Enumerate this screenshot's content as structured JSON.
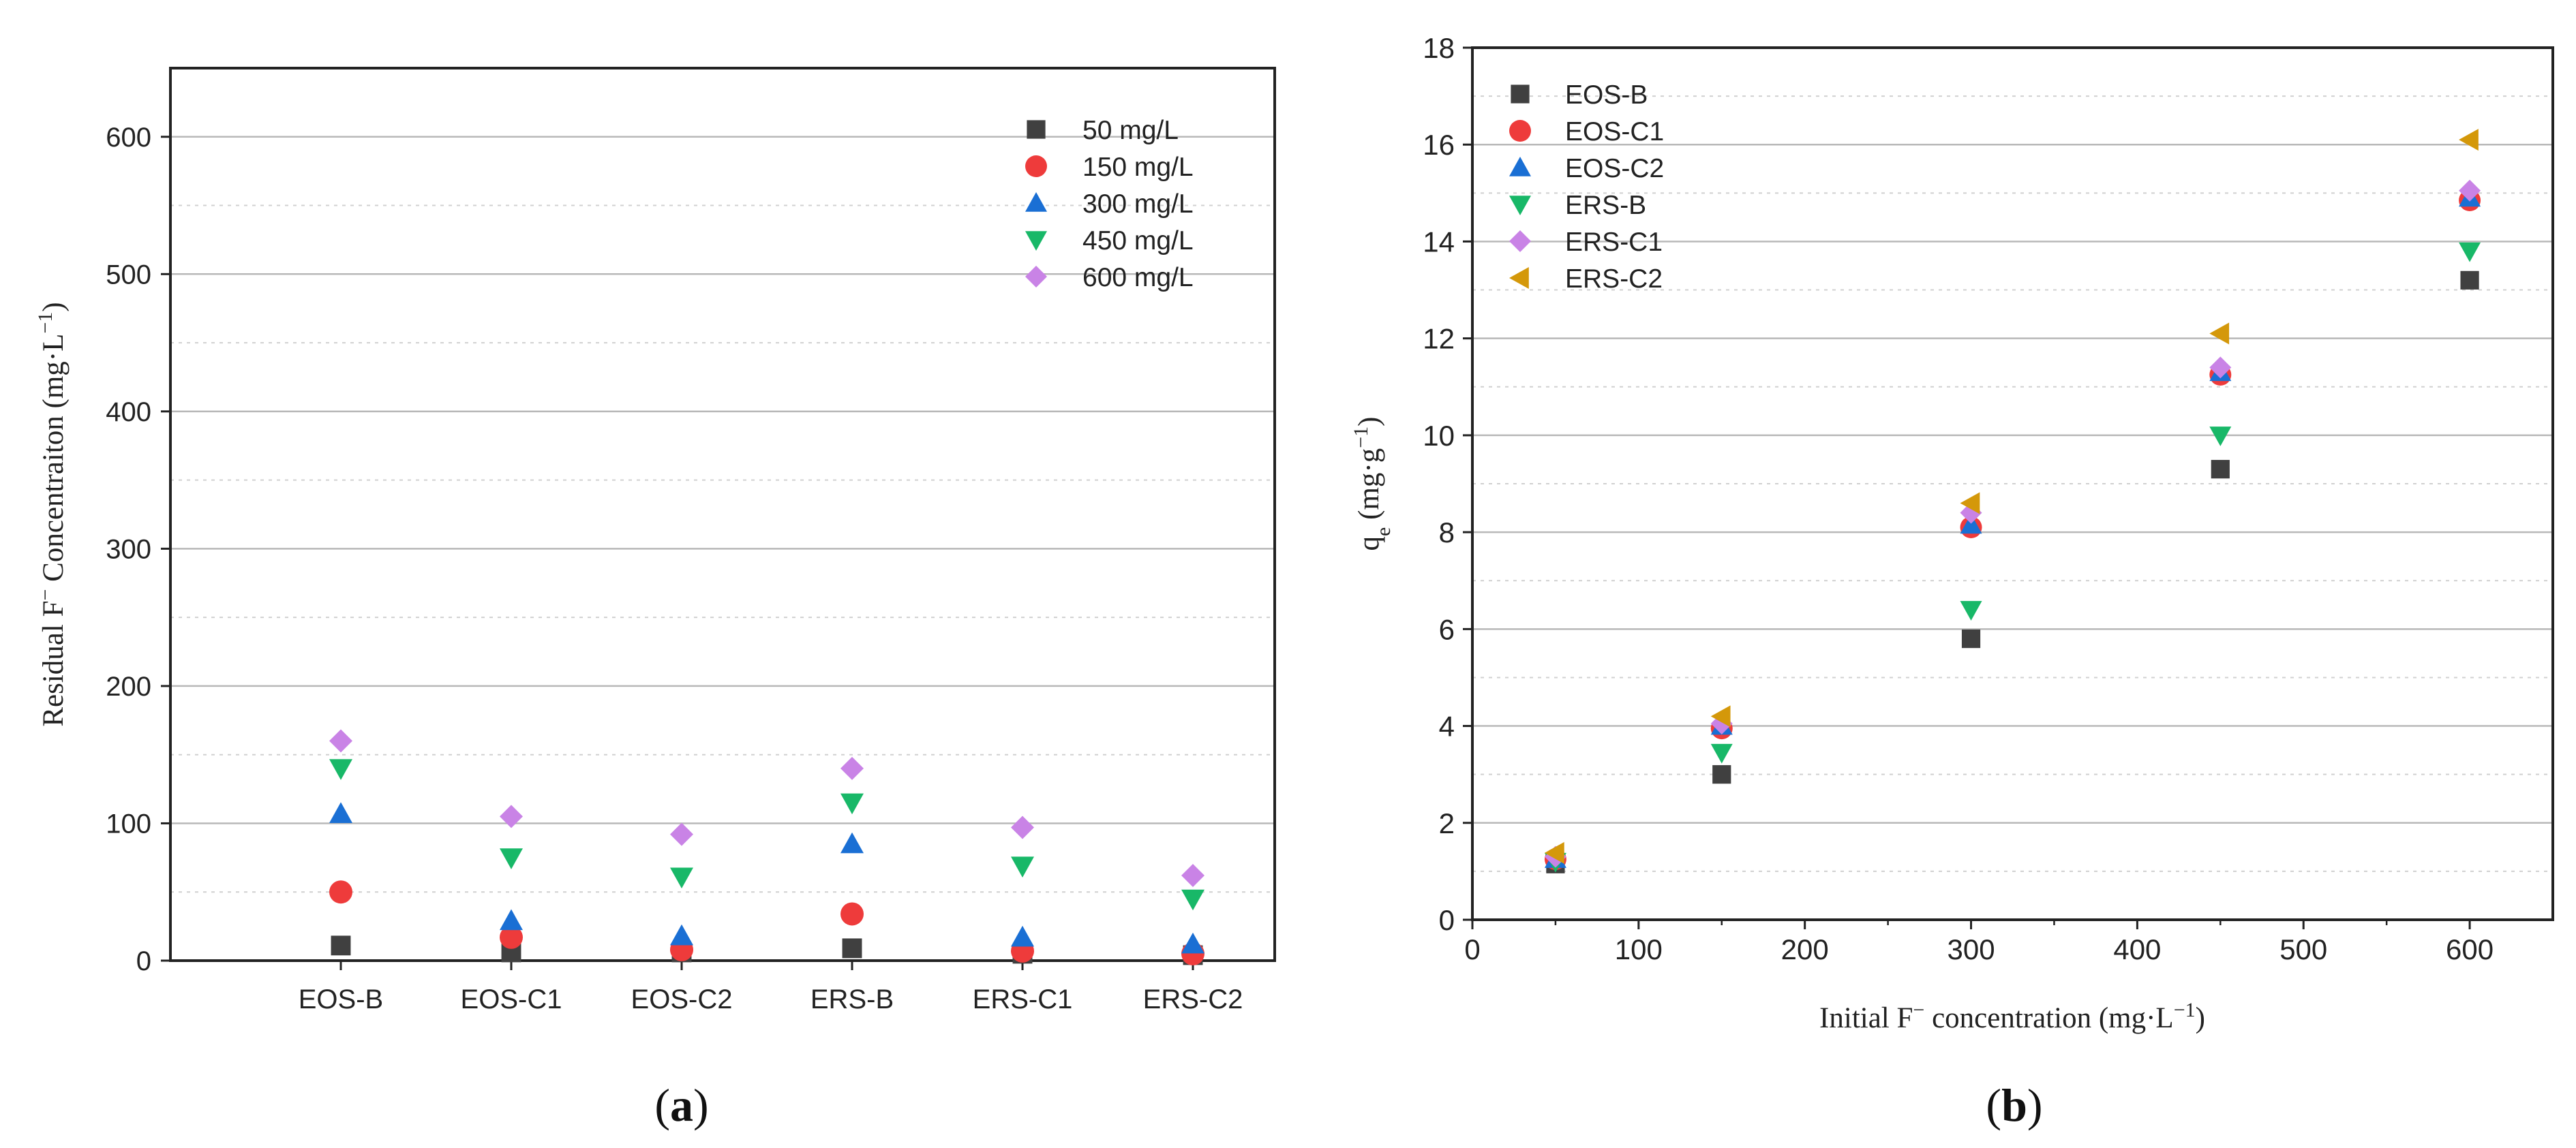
{
  "chart_data": [
    {
      "type": "scatter",
      "panel_label": "(a)",
      "panel_label_letter": "a",
      "ylabel": "Residual F− Concentraiton (mg·L−1)",
      "ylabel_parts": {
        "main": "Residual F",
        "sup1": "−",
        "mid": " Concentraiton (mg·L",
        "sup2": "−1",
        "end": ")"
      },
      "xlabel": "",
      "categories": [
        "EOS-B",
        "EOS-C1",
        "EOS-C2",
        "ERS-B",
        "ERS-C1",
        "ERS-C2"
      ],
      "ylim": [
        0,
        650
      ],
      "yticks": [
        0,
        100,
        200,
        300,
        400,
        500,
        600
      ],
      "legend_position": "top-right",
      "series": [
        {
          "name": "50 mg/L",
          "marker": "square",
          "color": "#404040",
          "values": [
            11,
            6,
            6,
            9,
            5,
            4
          ]
        },
        {
          "name": "150 mg/L",
          "marker": "circle",
          "color": "#ee3b3b",
          "values": [
            50,
            17,
            8,
            34,
            7,
            5
          ]
        },
        {
          "name": "300 mg/L",
          "marker": "triangle-up",
          "color": "#1a6fd4",
          "values": [
            107,
            29,
            18,
            85,
            17,
            12
          ]
        },
        {
          "name": "450 mg/L",
          "marker": "triangle-down",
          "color": "#18b868",
          "values": [
            140,
            75,
            61,
            115,
            69,
            45
          ]
        },
        {
          "name": "600 mg/L",
          "marker": "diamond",
          "color": "#c983e6",
          "values": [
            160,
            105,
            92,
            140,
            97,
            62
          ]
        }
      ]
    },
    {
      "type": "scatter",
      "panel_label": "(b)",
      "panel_label_letter": "b",
      "xlabel": "Initial F− concentration (mg·L−1)",
      "xlabel_parts": {
        "main": "Initial F",
        "sup1": "−",
        "mid": " concentration (mg·L",
        "sup2": "−1",
        "end": ")"
      },
      "ylabel": "qe (mg·g−1)",
      "ylabel_parts": {
        "main": "q",
        "sub": "e",
        "mid": " (mg·g",
        "sup": "−1",
        "end": ")"
      },
      "xlim": [
        0,
        650
      ],
      "ylim": [
        0,
        18
      ],
      "xticks": [
        0,
        100,
        200,
        300,
        400,
        500,
        600
      ],
      "yticks": [
        0,
        2,
        4,
        6,
        8,
        10,
        12,
        14,
        16,
        18
      ],
      "x": [
        50,
        150,
        300,
        450,
        600
      ],
      "legend_position": "top-left",
      "series": [
        {
          "name": "EOS-B",
          "marker": "square",
          "color": "#404040",
          "values": [
            1.15,
            3.0,
            5.8,
            9.3,
            13.2
          ]
        },
        {
          "name": "EOS-C1",
          "marker": "circle",
          "color": "#ee3b3b",
          "values": [
            1.25,
            3.95,
            8.1,
            11.25,
            14.85
          ]
        },
        {
          "name": "EOS-C2",
          "marker": "triangle-up",
          "color": "#1a6fd4",
          "values": [
            1.25,
            4.0,
            8.15,
            11.3,
            14.9
          ]
        },
        {
          "name": "ERS-B",
          "marker": "triangle-down",
          "color": "#18b868",
          "values": [
            1.2,
            3.45,
            6.4,
            10.0,
            13.8
          ]
        },
        {
          "name": "ERS-C1",
          "marker": "diamond",
          "color": "#c983e6",
          "values": [
            1.3,
            4.05,
            8.4,
            11.4,
            15.05
          ]
        },
        {
          "name": "ERS-C2",
          "marker": "triangle-left",
          "color": "#d4980a",
          "values": [
            1.38,
            4.2,
            8.6,
            12.1,
            16.1
          ]
        }
      ]
    }
  ]
}
